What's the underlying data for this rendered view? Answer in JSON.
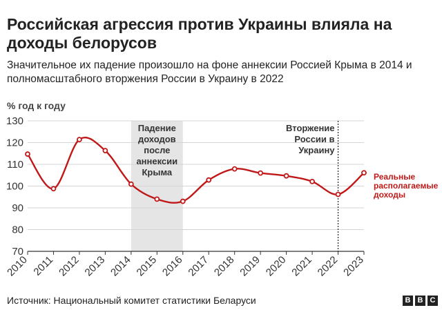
{
  "header": {
    "title": "Российская агрессия против Украины влияла на доходы белорусов",
    "subtitle": "Значительное их падение произошло на фоне аннексии Россией Крыма в 2014 и полномасштабного вторжения России в Украину в 2022"
  },
  "footer": {
    "source": "Источник: Национальный комитет статистики Беларуси",
    "logo_letters": [
      "B",
      "B",
      "C"
    ]
  },
  "colors": {
    "line": "#c01818",
    "shade": "#e5e5e5",
    "grid": "#d4d4d4",
    "axis": "#333333"
  },
  "chart_data": {
    "type": "line",
    "ylabel": "% год к году",
    "ylim": [
      70,
      130
    ],
    "yticks": [
      70,
      80,
      90,
      100,
      110,
      120,
      130
    ],
    "grid": true,
    "x": [
      "2010",
      "2011",
      "2012",
      "2013",
      "2014",
      "2015",
      "2016",
      "2017",
      "2018",
      "2019",
      "2020",
      "2021",
      "2022",
      "2023"
    ],
    "series": [
      {
        "name": "Реальные располагаемые доходы",
        "values": [
          114.7,
          98.8,
          121.4,
          116.3,
          100.9,
          94.0,
          93.0,
          102.8,
          107.9,
          106.0,
          104.7,
          102.1,
          96.2,
          106.1
        ]
      }
    ],
    "annotations": [
      {
        "type": "shaded-range",
        "from": "2014",
        "to": "2016",
        "lines": [
          "Падение",
          "доходов",
          "после",
          "аннексии",
          "Крыма"
        ]
      },
      {
        "type": "vertical-line",
        "at": "2022",
        "lines": [
          "Вторжение",
          "России в",
          "Украину"
        ]
      }
    ]
  }
}
